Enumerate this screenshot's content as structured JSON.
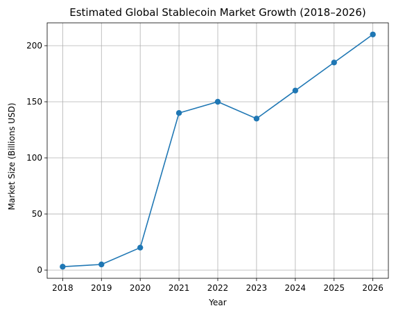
{
  "chart_data": {
    "type": "line",
    "title": "Estimated Global Stablecoin Market Growth (2018–2026)",
    "xlabel": "Year",
    "ylabel": "Market Size (Billions USD)",
    "x": [
      2018,
      2019,
      2020,
      2021,
      2022,
      2023,
      2024,
      2025,
      2026
    ],
    "x_tick_labels": [
      "2018",
      "2019",
      "2020",
      "2021",
      "2022",
      "2023",
      "2024",
      "2025",
      "2026"
    ],
    "series": [
      {
        "values": [
          3,
          5,
          20,
          140,
          150,
          135,
          160,
          185,
          210
        ],
        "color": "#1f77b4"
      }
    ],
    "y_ticks": [
      0,
      50,
      100,
      150,
      200
    ],
    "y_tick_labels": [
      "0",
      "50",
      "100",
      "150",
      "200"
    ],
    "xlim": [
      2017.6,
      2026.4
    ],
    "ylim": [
      -7.35,
      220.35
    ],
    "grid": true,
    "marker": "circle"
  }
}
